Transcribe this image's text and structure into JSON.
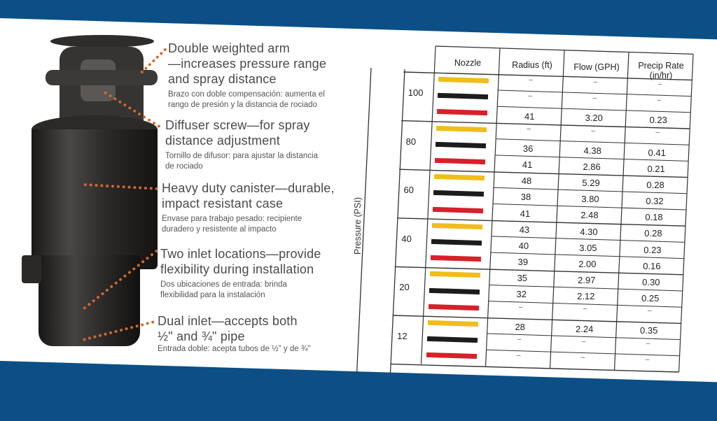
{
  "colors": {
    "background": "#0c4f86",
    "dots": "#d2692d",
    "yellow": "#f0bd1c",
    "black": "#1c1c1c",
    "red": "#d8202a"
  },
  "features": [
    {
      "title": "Double weighted arm\n—increases pressure range\nand spray distance",
      "subtitle": "Brazo con doble compensación: aumenta el\nrango de presión y la distancia de rociado"
    },
    {
      "title": "Diffuser screw—for spray\ndistance adjustment",
      "subtitle": "Tornillo de difusor: para ajustar la distancia\nde rociado"
    },
    {
      "title": "Heavy duty canister—durable,\nimpact resistant case",
      "subtitle": "Envase para trabajo pesado: recipiente\nduradero y resistente al impacto"
    },
    {
      "title": "Two inlet locations—provide\nflexibility during installation",
      "subtitle": "Dos ubicaciones de entrada: brinda\nflexibilidad para la instalación"
    },
    {
      "title": "Dual inlet—accepts both\n½\" and ¾\" pipe",
      "subtitle": "Entrada doble: acepta tubos de ½\" y de ¾\""
    }
  ],
  "table": {
    "y_label": "Pressure (PSI)",
    "headers": [
      "Nozzle",
      "Radius (ft)",
      "Flow (GPH)",
      "Precip Rate\n(in/hr)"
    ],
    "groups": [
      {
        "pressure": "100",
        "rows": [
          {
            "nozzle": "yellow",
            "radius": "–",
            "flow": "–",
            "precip": "–"
          },
          {
            "nozzle": "black",
            "radius": "–",
            "flow": "–",
            "precip": "–"
          },
          {
            "nozzle": "red",
            "radius": "41",
            "flow": "3.20",
            "precip": "0.23"
          }
        ]
      },
      {
        "pressure": "80",
        "rows": [
          {
            "nozzle": "yellow",
            "radius": "–",
            "flow": "–",
            "precip": "–"
          },
          {
            "nozzle": "black",
            "radius": "36",
            "flow": "4.38",
            "precip": "0.41"
          },
          {
            "nozzle": "red",
            "radius": "41",
            "flow": "2.86",
            "precip": "0.21"
          }
        ]
      },
      {
        "pressure": "60",
        "rows": [
          {
            "nozzle": "yellow",
            "radius": "48",
            "flow": "5.29",
            "precip": "0.28"
          },
          {
            "nozzle": "black",
            "radius": "38",
            "flow": "3.80",
            "precip": "0.32"
          },
          {
            "nozzle": "red",
            "radius": "41",
            "flow": "2.48",
            "precip": "0.18"
          }
        ]
      },
      {
        "pressure": "40",
        "rows": [
          {
            "nozzle": "yellow",
            "radius": "43",
            "flow": "4.30",
            "precip": "0.28"
          },
          {
            "nozzle": "black",
            "radius": "40",
            "flow": "3.05",
            "precip": "0.23"
          },
          {
            "nozzle": "red",
            "radius": "39",
            "flow": "2.00",
            "precip": "0.16"
          }
        ]
      },
      {
        "pressure": "20",
        "rows": [
          {
            "nozzle": "yellow",
            "radius": "35",
            "flow": "2.97",
            "precip": "0.30"
          },
          {
            "nozzle": "black",
            "radius": "32",
            "flow": "2.12",
            "precip": "0.25"
          },
          {
            "nozzle": "red",
            "radius": "–",
            "flow": "–",
            "precip": "–"
          }
        ]
      },
      {
        "pressure": "12",
        "rows": [
          {
            "nozzle": "yellow",
            "radius": "28",
            "flow": "2.24",
            "precip": "0.35"
          },
          {
            "nozzle": "black",
            "radius": "–",
            "flow": "–",
            "precip": "–"
          },
          {
            "nozzle": "red",
            "radius": "–",
            "flow": "–",
            "precip": "–"
          }
        ]
      }
    ]
  }
}
